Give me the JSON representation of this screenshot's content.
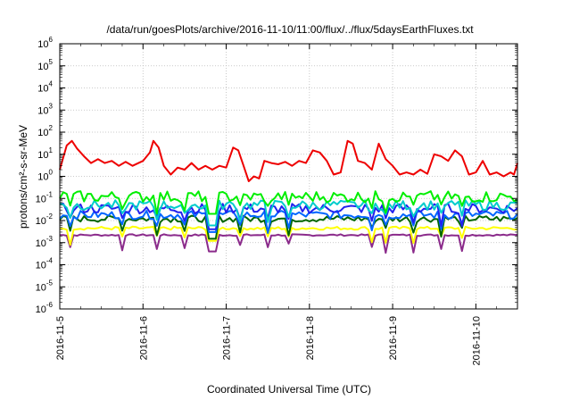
{
  "chart_data": {
    "type": "line",
    "title": "/data/run/goesPlots/archive/2016-11-10/11:00/flux/../flux/5daysEarthFluxes.txt",
    "xlabel": "Coordinated Universal Time (UTC)",
    "ylabel": "protons/cm²-s-sr-MeV",
    "yscale": "log",
    "ylim": [
      1e-06,
      1000000.0
    ],
    "xlim": [
      "2016-11-05T00:00",
      "2016-11-10T12:00"
    ],
    "x_ticks": [
      "2016-11-5",
      "2016-11-6",
      "2016-11-7",
      "2016-11-8",
      "2016-11-9",
      "2016-11-10"
    ],
    "y_ticks": [
      {
        "value": 1e-06,
        "mantissa": "10",
        "exp": "-6"
      },
      {
        "value": 1e-05,
        "mantissa": "10",
        "exp": "-5"
      },
      {
        "value": 0.0001,
        "mantissa": "10",
        "exp": "-4"
      },
      {
        "value": 0.001,
        "mantissa": "10",
        "exp": "-3"
      },
      {
        "value": 0.01,
        "mantissa": "10",
        "exp": "-2"
      },
      {
        "value": 0.1,
        "mantissa": "10",
        "exp": "-1"
      },
      {
        "value": 1,
        "mantissa": "10",
        "exp": "0"
      },
      {
        "value": 10,
        "mantissa": "10",
        "exp": "1"
      },
      {
        "value": 100,
        "mantissa": "10",
        "exp": "2"
      },
      {
        "value": 1000,
        "mantissa": "10",
        "exp": "3"
      },
      {
        "value": 10000,
        "mantissa": "10",
        "exp": "4"
      },
      {
        "value": 100000,
        "mantissa": "10",
        "exp": "5"
      },
      {
        "value": 1000000,
        "mantissa": "10",
        "exp": "6"
      }
    ],
    "grid": true,
    "legend": "none",
    "series": [
      {
        "color": "#ee0000",
        "points": [
          [
            "2016-11-05T00:00",
            2.0
          ],
          [
            "2016-11-05T02:00",
            25
          ],
          [
            "2016-11-05T03:30",
            40
          ],
          [
            "2016-11-05T05:00",
            18
          ],
          [
            "2016-11-05T07:00",
            8
          ],
          [
            "2016-11-05T09:00",
            4
          ],
          [
            "2016-11-05T11:00",
            6
          ],
          [
            "2016-11-05T13:00",
            4
          ],
          [
            "2016-11-05T15:00",
            5
          ],
          [
            "2016-11-05T17:00",
            3
          ],
          [
            "2016-11-05T19:00",
            4.5
          ],
          [
            "2016-11-05T21:00",
            3
          ],
          [
            "2016-11-06T00:00",
            5
          ],
          [
            "2016-11-06T02:00",
            12
          ],
          [
            "2016-11-06T03:00",
            40
          ],
          [
            "2016-11-06T04:30",
            20
          ],
          [
            "2016-11-06T06:00",
            3
          ],
          [
            "2016-11-06T08:00",
            1.2
          ],
          [
            "2016-11-06T10:00",
            2.5
          ],
          [
            "2016-11-06T12:00",
            2
          ],
          [
            "2016-11-06T14:00",
            4
          ],
          [
            "2016-11-06T16:00",
            2
          ],
          [
            "2016-11-06T18:00",
            3
          ],
          [
            "2016-11-06T20:00",
            2
          ],
          [
            "2016-11-06T22:00",
            3
          ],
          [
            "2016-11-07T00:00",
            2.5
          ],
          [
            "2016-11-07T02:00",
            20
          ],
          [
            "2016-11-07T03:30",
            15
          ],
          [
            "2016-11-07T05:00",
            3
          ],
          [
            "2016-11-07T06:30",
            0.6
          ],
          [
            "2016-11-07T08:00",
            1.0
          ],
          [
            "2016-11-07T09:30",
            0.8
          ],
          [
            "2016-11-07T11:00",
            5
          ],
          [
            "2016-11-07T13:00",
            4
          ],
          [
            "2016-11-07T15:00",
            3.5
          ],
          [
            "2016-11-07T17:00",
            4.5
          ],
          [
            "2016-11-07T19:00",
            3
          ],
          [
            "2016-11-07T21:00",
            5
          ],
          [
            "2016-11-07T23:00",
            4
          ],
          [
            "2016-11-08T01:00",
            15
          ],
          [
            "2016-11-08T03:00",
            12
          ],
          [
            "2016-11-08T05:00",
            5
          ],
          [
            "2016-11-08T07:00",
            1.2
          ],
          [
            "2016-11-08T09:00",
            1.5
          ],
          [
            "2016-11-08T11:00",
            40
          ],
          [
            "2016-11-08T12:30",
            30
          ],
          [
            "2016-11-08T14:00",
            5
          ],
          [
            "2016-11-08T16:00",
            4
          ],
          [
            "2016-11-08T18:00",
            2
          ],
          [
            "2016-11-08T20:00",
            30
          ],
          [
            "2016-11-08T22:00",
            6
          ],
          [
            "2016-11-09T00:00",
            3
          ],
          [
            "2016-11-09T02:00",
            1.2
          ],
          [
            "2016-11-09T04:00",
            1.5
          ],
          [
            "2016-11-09T06:00",
            1.2
          ],
          [
            "2016-11-09T08:00",
            2
          ],
          [
            "2016-11-09T10:00",
            1.3
          ],
          [
            "2016-11-09T12:00",
            10
          ],
          [
            "2016-11-09T14:00",
            8
          ],
          [
            "2016-11-09T16:00",
            5
          ],
          [
            "2016-11-09T18:00",
            15
          ],
          [
            "2016-11-09T20:00",
            8
          ],
          [
            "2016-11-09T22:00",
            1.2
          ],
          [
            "2016-11-10T00:00",
            1.5
          ],
          [
            "2016-11-10T02:00",
            5
          ],
          [
            "2016-11-10T04:00",
            1.2
          ],
          [
            "2016-11-10T06:00",
            1.5
          ],
          [
            "2016-11-10T08:00",
            1
          ],
          [
            "2016-11-10T10:00",
            1.5
          ],
          [
            "2016-11-10T11:00",
            1.2
          ],
          [
            "2016-11-10T12:00",
            4
          ]
        ]
      },
      {
        "color": "#00ee00",
        "base": 0.12,
        "jitter": 0.35,
        "dip": 0.02
      },
      {
        "color": "#00cccc",
        "base": 0.05,
        "jitter": 0.3,
        "dip": 0.006
      },
      {
        "color": "#2222ee",
        "base": 0.035,
        "jitter": 0.3,
        "dip": 0.004
      },
      {
        "color": "#0066ff",
        "base": 0.018,
        "jitter": 0.25,
        "dip": 0.003
      },
      {
        "color": "#006600",
        "base": 0.012,
        "jitter": 0.2,
        "dip": 0.0015
      },
      {
        "color": "#ffff00",
        "base": 0.0045,
        "jitter": 0.1,
        "dip": 0.0012
      },
      {
        "color": "#8b2b8b",
        "base": 0.0022,
        "jitter": 0.05,
        "dip": 0.0004
      }
    ]
  }
}
